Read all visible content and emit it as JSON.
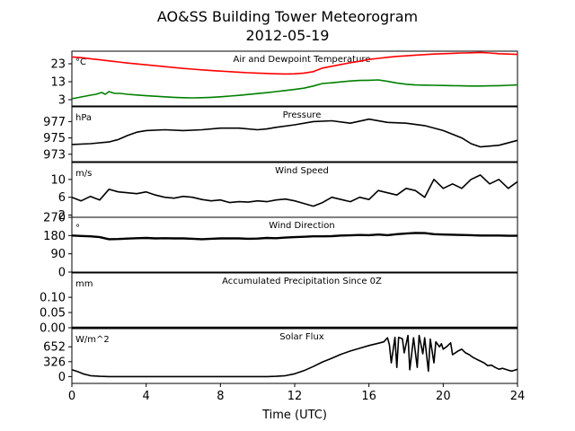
{
  "chart_data": {
    "type": "line",
    "title": "AO&SS Building Tower Meteorogram",
    "subtitle": "2012-05-19",
    "xlabel": "Time (UTC)",
    "xlim": [
      0,
      24
    ],
    "xticks": [
      0,
      4,
      8,
      12,
      16,
      20,
      24
    ],
    "panels": [
      {
        "key": "temp",
        "title": "Air and Dewpoint Temperature",
        "unit": "°C",
        "ylim": [
          -0.5,
          30
        ],
        "yticks": [
          3,
          13,
          23
        ],
        "series": [
          {
            "color": "#ff0000",
            "width": 1.6,
            "x": [
              0,
              0.5,
              1,
              1.5,
              2,
              2.5,
              3,
              3.5,
              4,
              4.5,
              5,
              5.5,
              6,
              6.5,
              7,
              7.5,
              8,
              8.5,
              9,
              9.5,
              10,
              10.5,
              11,
              11.5,
              12,
              12.5,
              13,
              13.5,
              14,
              14.5,
              15,
              15.5,
              16,
              16.5,
              17,
              17.5,
              18,
              18.5,
              19,
              19.5,
              20,
              20.5,
              21,
              21.5,
              22,
              22.5,
              23,
              23.5,
              24
            ],
            "y": [
              26.8,
              26.4,
              25.8,
              25.2,
              24.6,
              24,
              23.4,
              22.9,
              22.4,
              21.9,
              21.4,
              20.9,
              20.4,
              20,
              19.6,
              19.2,
              18.9,
              18.6,
              18.3,
              18,
              17.8,
              17.6,
              17.4,
              17.3,
              17.4,
              17.8,
              18.6,
              20.6,
              21.6,
              22.6,
              23.6,
              24.4,
              25.4,
              26,
              26.6,
              27.1,
              27.4,
              27.8,
              28.1,
              28.4,
              28.6,
              28.8,
              29,
              29.1,
              29.3,
              29,
              28.6,
              28.4,
              28.2
            ]
          },
          {
            "color": "#008000",
            "width": 1.6,
            "x": [
              0,
              0.5,
              1,
              1.3,
              1.6,
              1.8,
              2,
              2.3,
              2.6,
              3,
              3.5,
              4,
              4.5,
              5,
              5.5,
              6,
              6.5,
              7,
              7.5,
              8,
              8.5,
              9,
              9.5,
              10,
              10.5,
              11,
              11.5,
              12,
              12.5,
              13,
              13.5,
              14,
              14.5,
              15,
              15.5,
              16,
              16.5,
              17,
              17.5,
              18,
              18.5,
              19,
              19.5,
              20,
              20.5,
              21,
              21.5,
              22,
              22.5,
              23,
              23.5,
              24
            ],
            "y": [
              3.5,
              4.5,
              5.5,
              6,
              7,
              6,
              7.5,
              6.5,
              6.5,
              6,
              5.6,
              5.2,
              4.9,
              4.6,
              4.3,
              4.1,
              4,
              4.1,
              4.3,
              4.6,
              5,
              5.4,
              5.9,
              6.4,
              6.9,
              7.5,
              8.1,
              8.7,
              9.4,
              10.6,
              12,
              12.4,
              12.9,
              13.4,
              13.7,
              13.8,
              14,
              13.2,
              12.3,
              11.6,
              11.2,
              11.1,
              11,
              10.9,
              10.8,
              10.7,
              10.6,
              10.6,
              10.7,
              10.8,
              11,
              11.2
            ]
          }
        ]
      },
      {
        "key": "pres",
        "title": "Pressure",
        "unit": "hPa",
        "ylim": [
          972.1,
          978.8
        ],
        "yticks": [
          973,
          975,
          977
        ],
        "series": [
          {
            "color": "#000000",
            "width": 1.6,
            "x": [
              0,
              1,
              2,
              2.5,
              3,
              3.5,
              4,
              5,
              6,
              7,
              8,
              9,
              10,
              10.5,
              11,
              12,
              13,
              14,
              15,
              16,
              17,
              18,
              19,
              20,
              21,
              21.5,
              22,
              23,
              24
            ],
            "y": [
              974.2,
              974.3,
              974.5,
              974.8,
              975.3,
              975.7,
              975.9,
              976,
              975.9,
              976,
              976.2,
              976.2,
              976,
              976.1,
              976.3,
              976.6,
              977,
              977.1,
              976.8,
              977.3,
              976.9,
              976.8,
              976.5,
              975.9,
              975,
              974.3,
              973.9,
              974.1,
              974.7
            ]
          }
        ]
      },
      {
        "key": "wspd",
        "title": "Wind Speed",
        "unit": "m/s",
        "ylim": [
          1.5,
          13.8
        ],
        "yticks": [
          2,
          6,
          10
        ],
        "series": [
          {
            "color": "#000000",
            "width": 1.6,
            "x": [
              0,
              0.5,
              1,
              1.5,
              2,
              2.5,
              3,
              3.5,
              4,
              4.5,
              5,
              5.5,
              6,
              6.5,
              7,
              7.5,
              8,
              8.5,
              9,
              9.5,
              10,
              10.5,
              11,
              11.5,
              12,
              12.5,
              13,
              13.5,
              14,
              14.5,
              15,
              15.5,
              16,
              16.5,
              17,
              17.5,
              18,
              18.5,
              19,
              19.5,
              20,
              20.5,
              21,
              21.5,
              22,
              22.5,
              23,
              23.5,
              24
            ],
            "y": [
              6,
              5.2,
              6.2,
              5.4,
              7.8,
              7.2,
              7,
              6.8,
              7.2,
              6.5,
              6,
              5.8,
              6.2,
              6,
              5.5,
              5.2,
              5.4,
              4.8,
              5,
              4.9,
              5.2,
              5,
              5.4,
              5.6,
              5.2,
              4.6,
              4,
              4.8,
              6,
              5.5,
              5,
              6,
              5.5,
              7.5,
              7,
              6.5,
              8,
              7.5,
              6,
              10,
              8,
              9,
              8,
              10,
              11,
              9,
              10,
              8,
              9.5
            ]
          }
        ]
      },
      {
        "key": "wdir",
        "title": "Wind Direction",
        "unit": "°",
        "ylim": [
          0,
          270
        ],
        "yticks": [
          0,
          90,
          180,
          270
        ],
        "series": [
          {
            "color": "#000000",
            "width": 2.4,
            "x": [
              0,
              0.5,
              1,
              1.5,
              2,
              2.5,
              3,
              3.5,
              4,
              4.5,
              5,
              5.5,
              6,
              6.5,
              7,
              7.5,
              8,
              8.5,
              9,
              9.5,
              10,
              10.5,
              11,
              11.5,
              12,
              12.5,
              13,
              13.5,
              14,
              14.5,
              15,
              15.5,
              16,
              16.5,
              17,
              17.5,
              18,
              18.5,
              19,
              19.5,
              20,
              20.5,
              21,
              21.5,
              22,
              22.5,
              23,
              23.5,
              24
            ],
            "y": [
              180,
              178,
              176,
              172,
              162,
              163,
              165,
              167,
              168,
              166,
              167,
              166,
              166,
              164,
              162,
              164,
              166,
              166,
              166,
              164,
              165,
              168,
              167,
              170,
              172,
              174,
              176,
              176,
              177,
              180,
              181,
              183,
              182,
              185,
              182,
              187,
              190,
              193,
              192,
              187,
              185,
              184,
              183,
              182,
              180,
              180,
              180,
              179,
              179
            ]
          }
        ]
      },
      {
        "key": "precip",
        "title": "Accumulated Precipitation Since 0Z",
        "unit": "mm",
        "ylim": [
          0,
          0.18
        ],
        "yticks": [
          0.0,
          0.05,
          0.1
        ],
        "ytickfmt": 2,
        "series": [
          {
            "color": "#000000",
            "width": 2.4,
            "x": [
              0,
              24
            ],
            "y": [
              0,
              0
            ]
          }
        ]
      },
      {
        "key": "solar",
        "title": "Solar Flux",
        "unit": "W/m^2",
        "ylim": [
          -150,
          1050
        ],
        "yticks": [
          0,
          326,
          652
        ],
        "series": [
          {
            "color": "#000000",
            "width": 1.6,
            "x": [
              0,
              0.3,
              0.6,
              1,
              1.5,
              2,
              3,
              4,
              5,
              6,
              7,
              8,
              9,
              10,
              10.5,
              11,
              11.5,
              12,
              12.5,
              13,
              13.5,
              14,
              14.5,
              15,
              15.5,
              16,
              16.5,
              16.8,
              17,
              17.1,
              17.2,
              17.4,
              17.5,
              17.6,
              17.8,
              17.9,
              18.1,
              18.2,
              18.4,
              18.6,
              18.7,
              18.9,
              19,
              19.2,
              19.3,
              19.5,
              19.6,
              19.8,
              19.9,
              20,
              20.2,
              20.4,
              20.5,
              20.8,
              21,
              21.2,
              21.4,
              21.6,
              21.8,
              22,
              22.2,
              22.4,
              22.6,
              22.8,
              23,
              23.2,
              23.5,
              23.7,
              24
            ],
            "y": [
              150,
              110,
              60,
              20,
              5,
              0,
              0,
              0,
              0,
              0,
              0,
              0,
              0,
              0,
              0,
              5,
              20,
              60,
              130,
              220,
              320,
              400,
              490,
              560,
              620,
              680,
              730,
              760,
              850,
              700,
              300,
              860,
              200,
              860,
              830,
              520,
              900,
              150,
              850,
              200,
              900,
              500,
              850,
              120,
              820,
              300,
              760,
              650,
              720,
              600,
              660,
              740,
              480,
              560,
              600,
              520,
              480,
              420,
              380,
              340,
              300,
              240,
              250,
              200,
              160,
              180,
              140,
              120,
              160
            ]
          }
        ]
      }
    ]
  }
}
